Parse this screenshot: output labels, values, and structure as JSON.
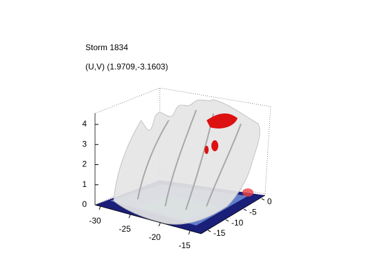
{
  "title": "Storm 1834",
  "subtitle": "(U,V) (1.9709,-3.1603)",
  "axes": {
    "zticks": [
      0,
      1,
      2,
      3,
      4
    ],
    "xticks": [
      -30,
      -25,
      -20,
      -15
    ],
    "yticks": [
      0,
      -5,
      -10,
      -15
    ]
  }
}
